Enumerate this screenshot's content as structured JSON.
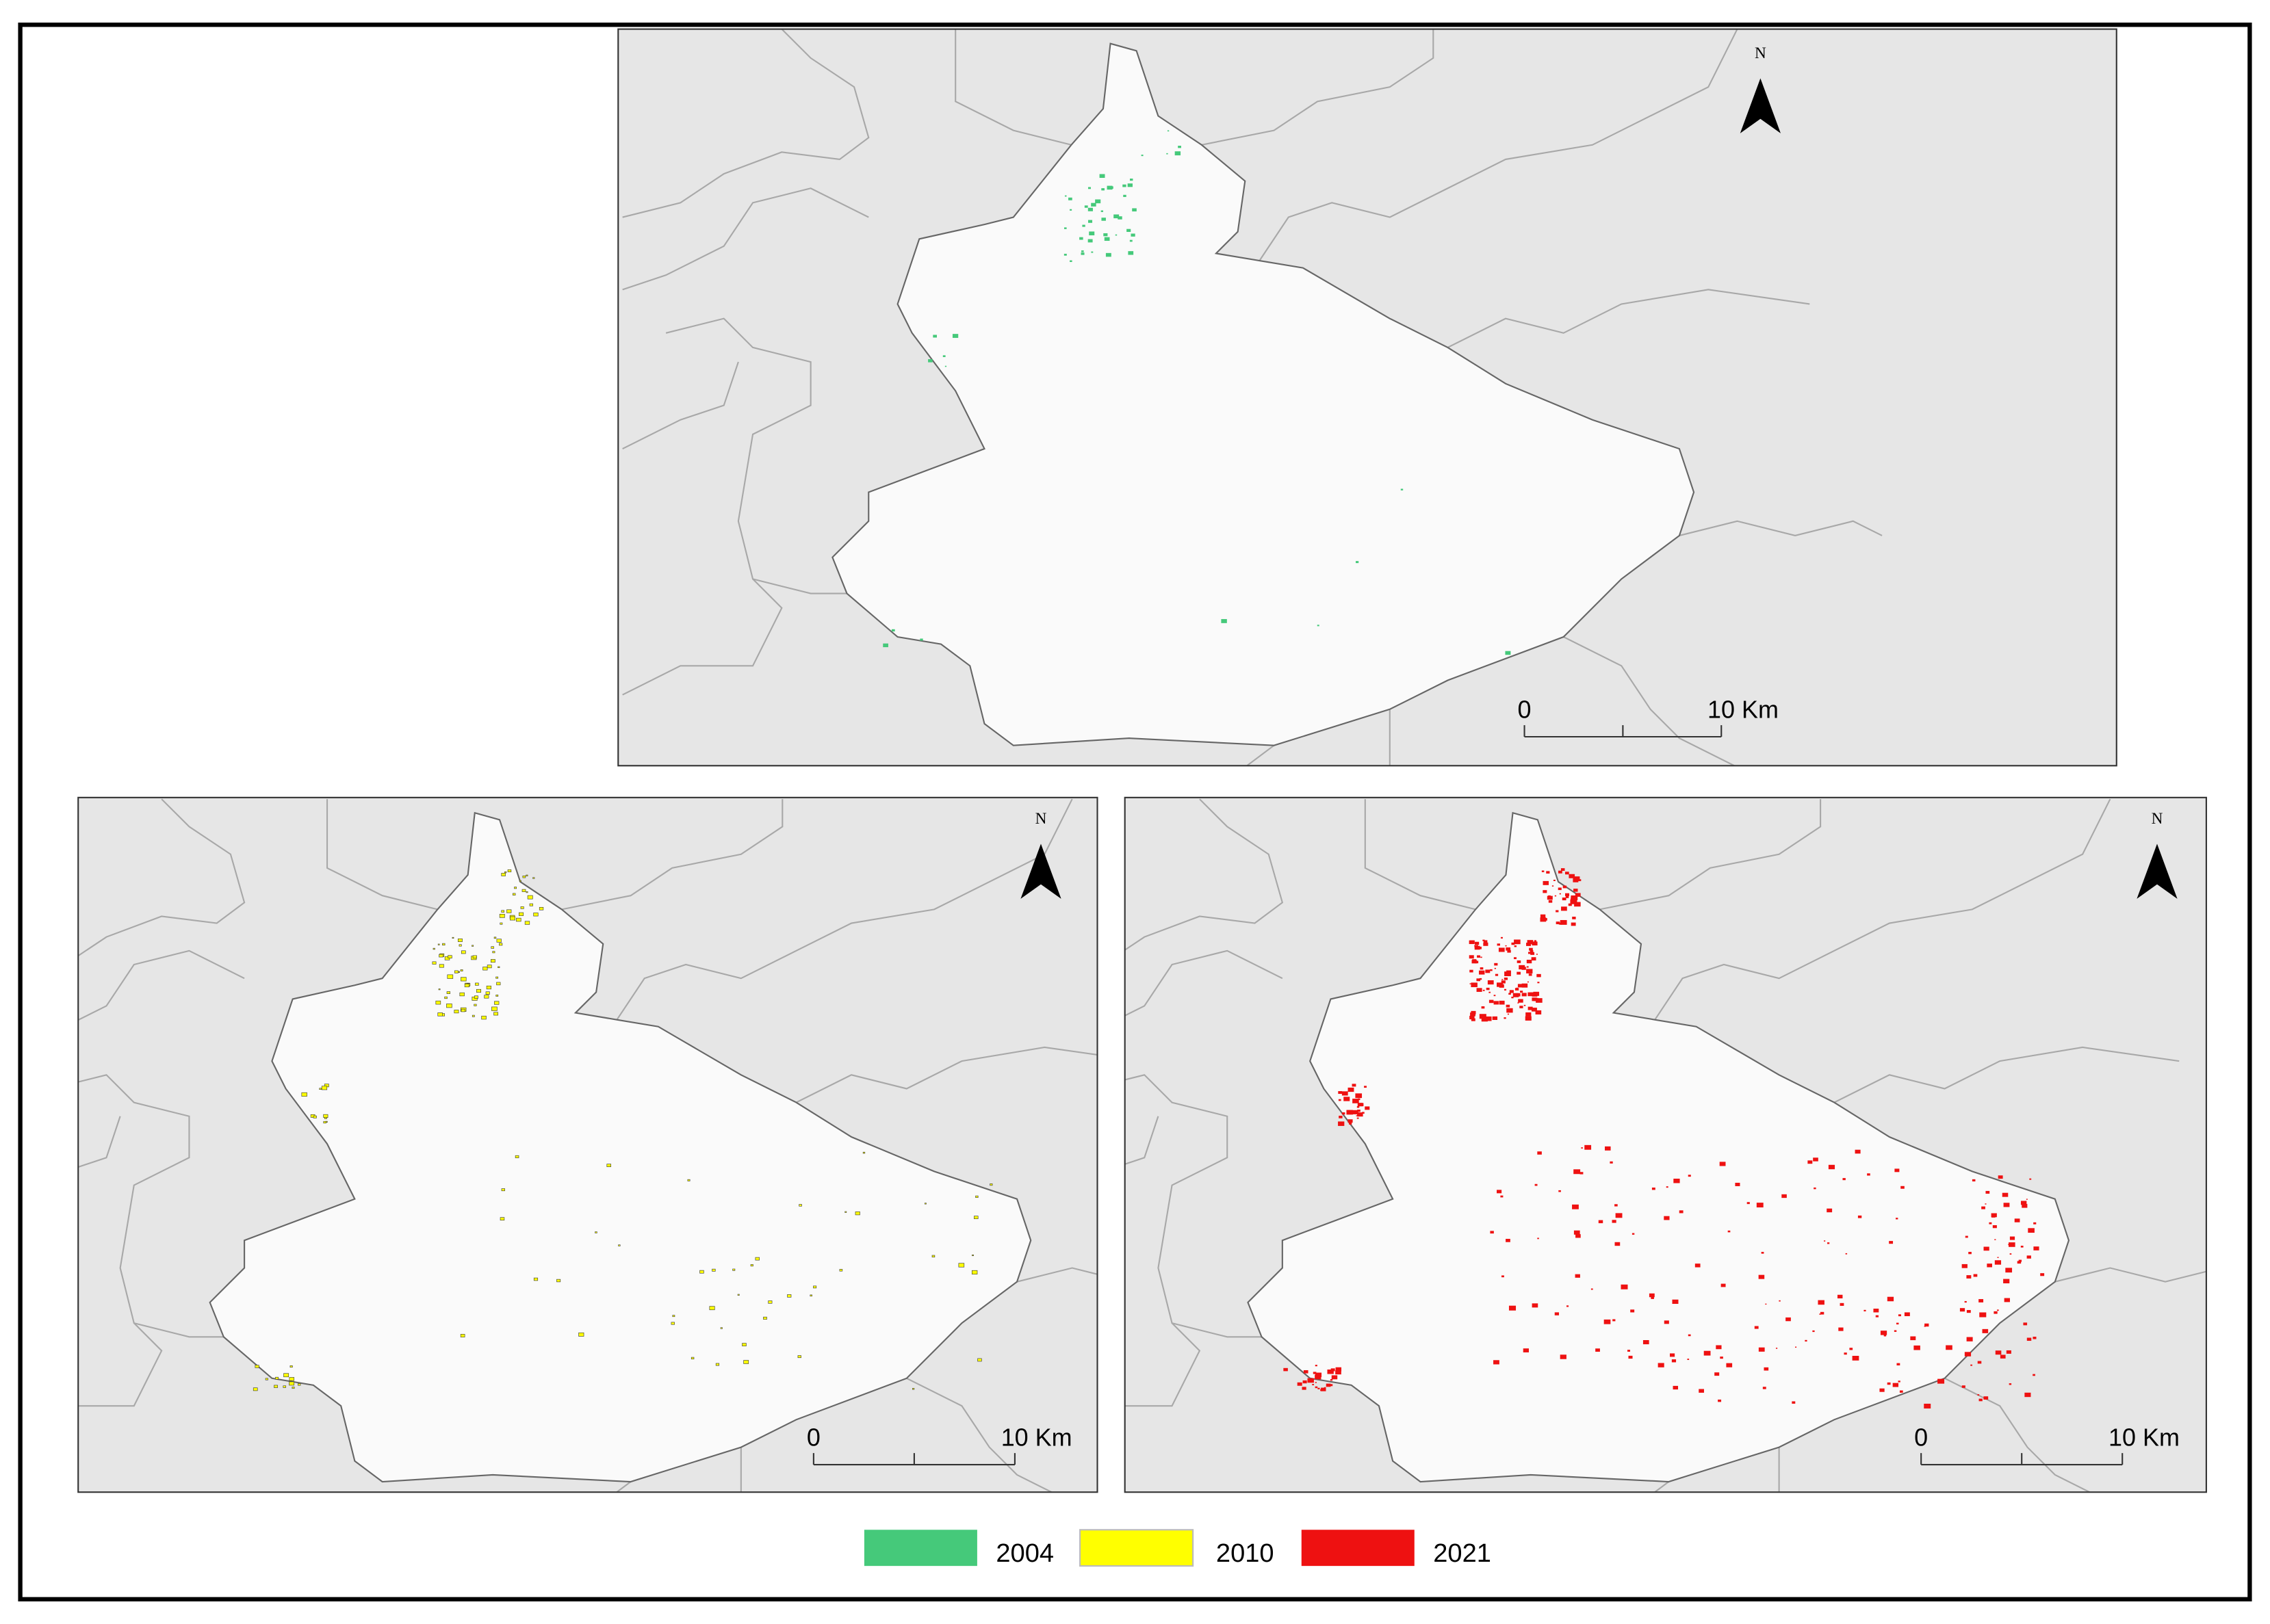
{
  "maps": [
    {
      "north": "N",
      "scale": {
        "start": "0",
        "end": "10 Km"
      }
    },
    {
      "north": "N",
      "scale": {
        "start": "0",
        "end": "10 Km"
      }
    },
    {
      "north": "N",
      "scale": {
        "start": "0",
        "end": "10 Km"
      }
    }
  ],
  "legend": [
    {
      "label": "2004",
      "color": "#45c97a"
    },
    {
      "label": "2010",
      "color": "#ffff00"
    },
    {
      "label": "2021",
      "color": "#ee1111"
    }
  ]
}
